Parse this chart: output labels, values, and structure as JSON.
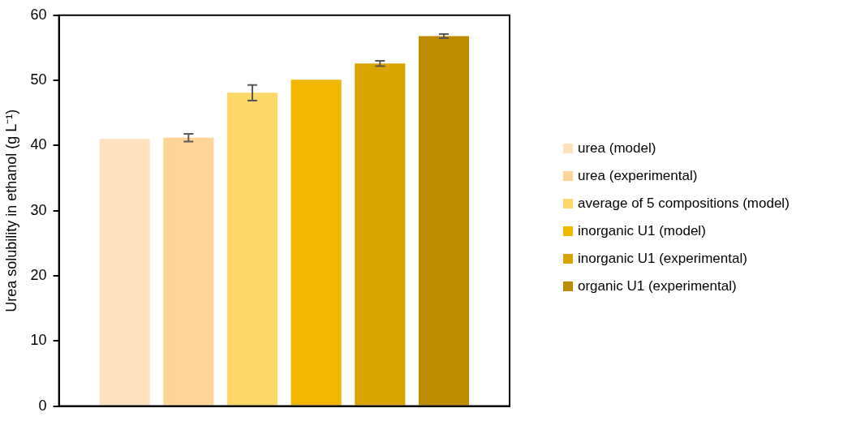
{
  "chart_data": {
    "type": "bar",
    "ylabel": "Urea solubility in ethanol (g L⁻¹)",
    "categories": [
      null
    ],
    "series": [
      {
        "name": "urea (model)",
        "color": "#fee0bd",
        "values": [
          41.0
        ]
      },
      {
        "name": "urea (experimental)",
        "color": "#fed597",
        "values": [
          41.2
        ],
        "errors": [
          0.6
        ]
      },
      {
        "name": "average of 5 compositions (model)",
        "color": "#fdd868",
        "values": [
          48.1
        ],
        "errors": [
          1.2
        ]
      },
      {
        "name": "inorganic U1 (model)",
        "color": "#f2b600",
        "values": [
          50.1
        ]
      },
      {
        "name": "inorganic U1 (experimental)",
        "color": "#daa400",
        "values": [
          52.6
        ],
        "errors": [
          0.4
        ]
      },
      {
        "name": "organic U1 (experimental)",
        "color": "#bd8c00",
        "values": [
          56.8
        ],
        "errors": [
          0.3
        ]
      }
    ],
    "ylim": [
      0,
      60
    ],
    "yticks": [
      0,
      10,
      20,
      30,
      40,
      50,
      60
    ],
    "grid": false,
    "legend": "right"
  }
}
